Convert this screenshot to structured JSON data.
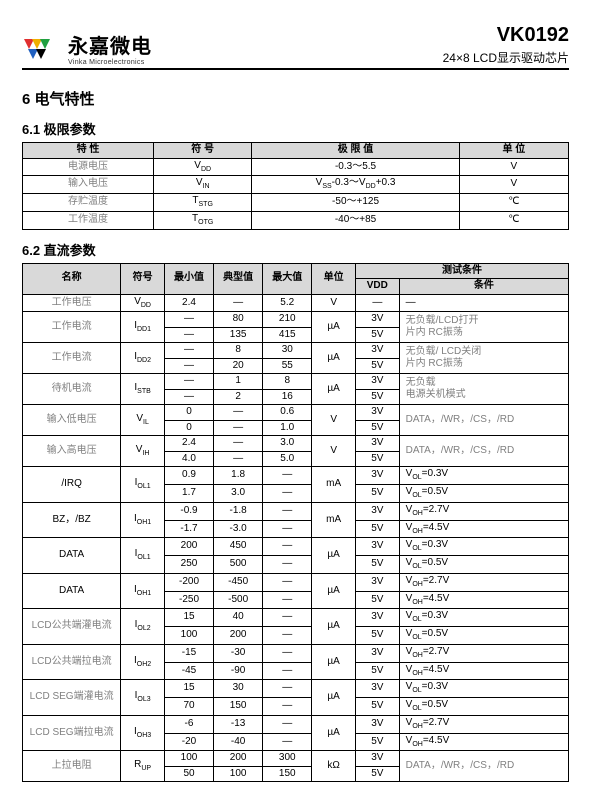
{
  "header": {
    "logo_cn": "永嘉微电",
    "logo_en": "Vinka Microelectronics",
    "part": "VK0192",
    "subtitle": "24×8 LCD显示驱动芯片"
  },
  "sec6": "6  电气特性",
  "sec61": "6.1 极限参数",
  "sec62": "6.2 直流参数",
  "t1": {
    "head": [
      "特   性",
      "符   号",
      "极   限   值",
      "单   位"
    ],
    "rows": [
      [
        "电源电压",
        "VDD",
        "-0.3～5.5",
        "V"
      ],
      [
        "输入电压",
        "VIN",
        "VSS-0.3～VDD+0.3",
        "V"
      ],
      [
        "存贮温度",
        "TSTG",
        "-50～+125",
        "℃"
      ],
      [
        "工作温度",
        "TOTG",
        "-40～+85",
        "℃"
      ]
    ]
  },
  "t2h": {
    "name": "名称",
    "sym": "符号",
    "min": "最小值",
    "typ": "典型值",
    "max": "最大值",
    "unit": "单位",
    "cond": "测试条件",
    "vdd": "VDD",
    "c": "条件"
  },
  "t2rows": [
    {
      "name": "工作电压",
      "sym": "VDD",
      "min": "2.4",
      "typ": "—",
      "max": "5.2",
      "unit": "V",
      "vdd": "—",
      "cond": "—",
      "span": 1
    },
    {
      "name": "工作电流",
      "sym": "IDD1",
      "unit": "µA",
      "cond": "无负载/LCD打开\n片内 RC振荡",
      "rows": [
        [
          "—",
          "80",
          "210",
          "3V"
        ],
        [
          "—",
          "135",
          "415",
          "5V"
        ]
      ]
    },
    {
      "name": "工作电流",
      "sym": "IDD2",
      "unit": "µA",
      "cond": "无负载/ LCD关闭\n片内 RC振荡",
      "rows": [
        [
          "—",
          "8",
          "30",
          "3V"
        ],
        [
          "—",
          "20",
          "55",
          "5V"
        ]
      ]
    },
    {
      "name": "待机电流",
      "sym": "ISTB",
      "unit": "µA",
      "cond": "无负载\n电源关机模式",
      "rows": [
        [
          "—",
          "1",
          "8",
          "3V"
        ],
        [
          "—",
          "2",
          "16",
          "5V"
        ]
      ]
    },
    {
      "name": "输入低电压",
      "sym": "VIL",
      "unit": "V",
      "cond": "DATA，/WR，/CS，/RD",
      "rows": [
        [
          "0",
          "—",
          "0.6",
          "3V"
        ],
        [
          "0",
          "—",
          "1.0",
          "5V"
        ]
      ]
    },
    {
      "name": "输入高电压",
      "sym": "VIH",
      "unit": "V",
      "cond": "DATA，/WR，/CS，/RD",
      "rows": [
        [
          "2.4",
          "—",
          "3.0",
          "3V"
        ],
        [
          "4.0",
          "—",
          "5.0",
          "5V"
        ]
      ]
    },
    {
      "name": "/IRQ",
      "sym": "IOL1",
      "unit": "mA",
      "cond2": [
        "VOL=0.3V",
        "VOL=0.5V"
      ],
      "rows": [
        [
          "0.9",
          "1.8",
          "—",
          "3V"
        ],
        [
          "1.7",
          "3.0",
          "—",
          "5V"
        ]
      ]
    },
    {
      "name": "BZ，/BZ",
      "sym": "IOH1",
      "unit": "mA",
      "cond2": [
        "VOH=2.7V",
        "VOH=4.5V"
      ],
      "rows": [
        [
          "-0.9",
          "-1.8",
          "—",
          "3V"
        ],
        [
          "-1.7",
          "-3.0",
          "—",
          "5V"
        ]
      ]
    },
    {
      "name": "DATA",
      "sym": "IOL1",
      "unit": "µA",
      "cond2": [
        "VOL=0.3V",
        "VOL=0.5V"
      ],
      "rows": [
        [
          "200",
          "450",
          "—",
          "3V"
        ],
        [
          "250",
          "500",
          "—",
          "5V"
        ]
      ]
    },
    {
      "name": "DATA",
      "sym": "IOH1",
      "unit": "µA",
      "cond2": [
        "VOH=2.7V",
        "VOH=4.5V"
      ],
      "rows": [
        [
          "-200",
          "-450",
          "—",
          "3V"
        ],
        [
          "-250",
          "-500",
          "—",
          "5V"
        ]
      ]
    },
    {
      "name": "LCD公共端灌电流",
      "sym": "IOL2",
      "unit": "µA",
      "cond2": [
        "VOL=0.3V",
        "VOL=0.5V"
      ],
      "rows": [
        [
          "15",
          "40",
          "—",
          "3V"
        ],
        [
          "100",
          "200",
          "—",
          "5V"
        ]
      ]
    },
    {
      "name": "LCD公共端拉电流",
      "sym": "IOH2",
      "unit": "µA",
      "cond2": [
        "VOH=2.7V",
        "VOH=4.5V"
      ],
      "rows": [
        [
          "-15",
          "-30",
          "—",
          "3V"
        ],
        [
          "-45",
          "-90",
          "—",
          "5V"
        ]
      ]
    },
    {
      "name": "LCD SEG端灌电流",
      "sym": "IOL3",
      "unit": "µA",
      "cond2": [
        "VOL=0.3V",
        "VOL=0.5V"
      ],
      "rows": [
        [
          "15",
          "30",
          "—",
          "3V"
        ],
        [
          "70",
          "150",
          "—",
          "5V"
        ]
      ]
    },
    {
      "name": "LCD SEG端拉电流",
      "sym": "IOH3",
      "unit": "µA",
      "cond2": [
        "VOH=2.7V",
        "VOH=4.5V"
      ],
      "rows": [
        [
          "-6",
          "-13",
          "—",
          "3V"
        ],
        [
          "-20",
          "-40",
          "—",
          "5V"
        ]
      ]
    },
    {
      "name": "上拉电阻",
      "sym": "RUP",
      "unit": "kΩ",
      "cond": "DATA，/WR，/CS，/RD",
      "rows": [
        [
          "100",
          "200",
          "300",
          "3V"
        ],
        [
          "50",
          "100",
          "150",
          "5V"
        ]
      ]
    }
  ]
}
